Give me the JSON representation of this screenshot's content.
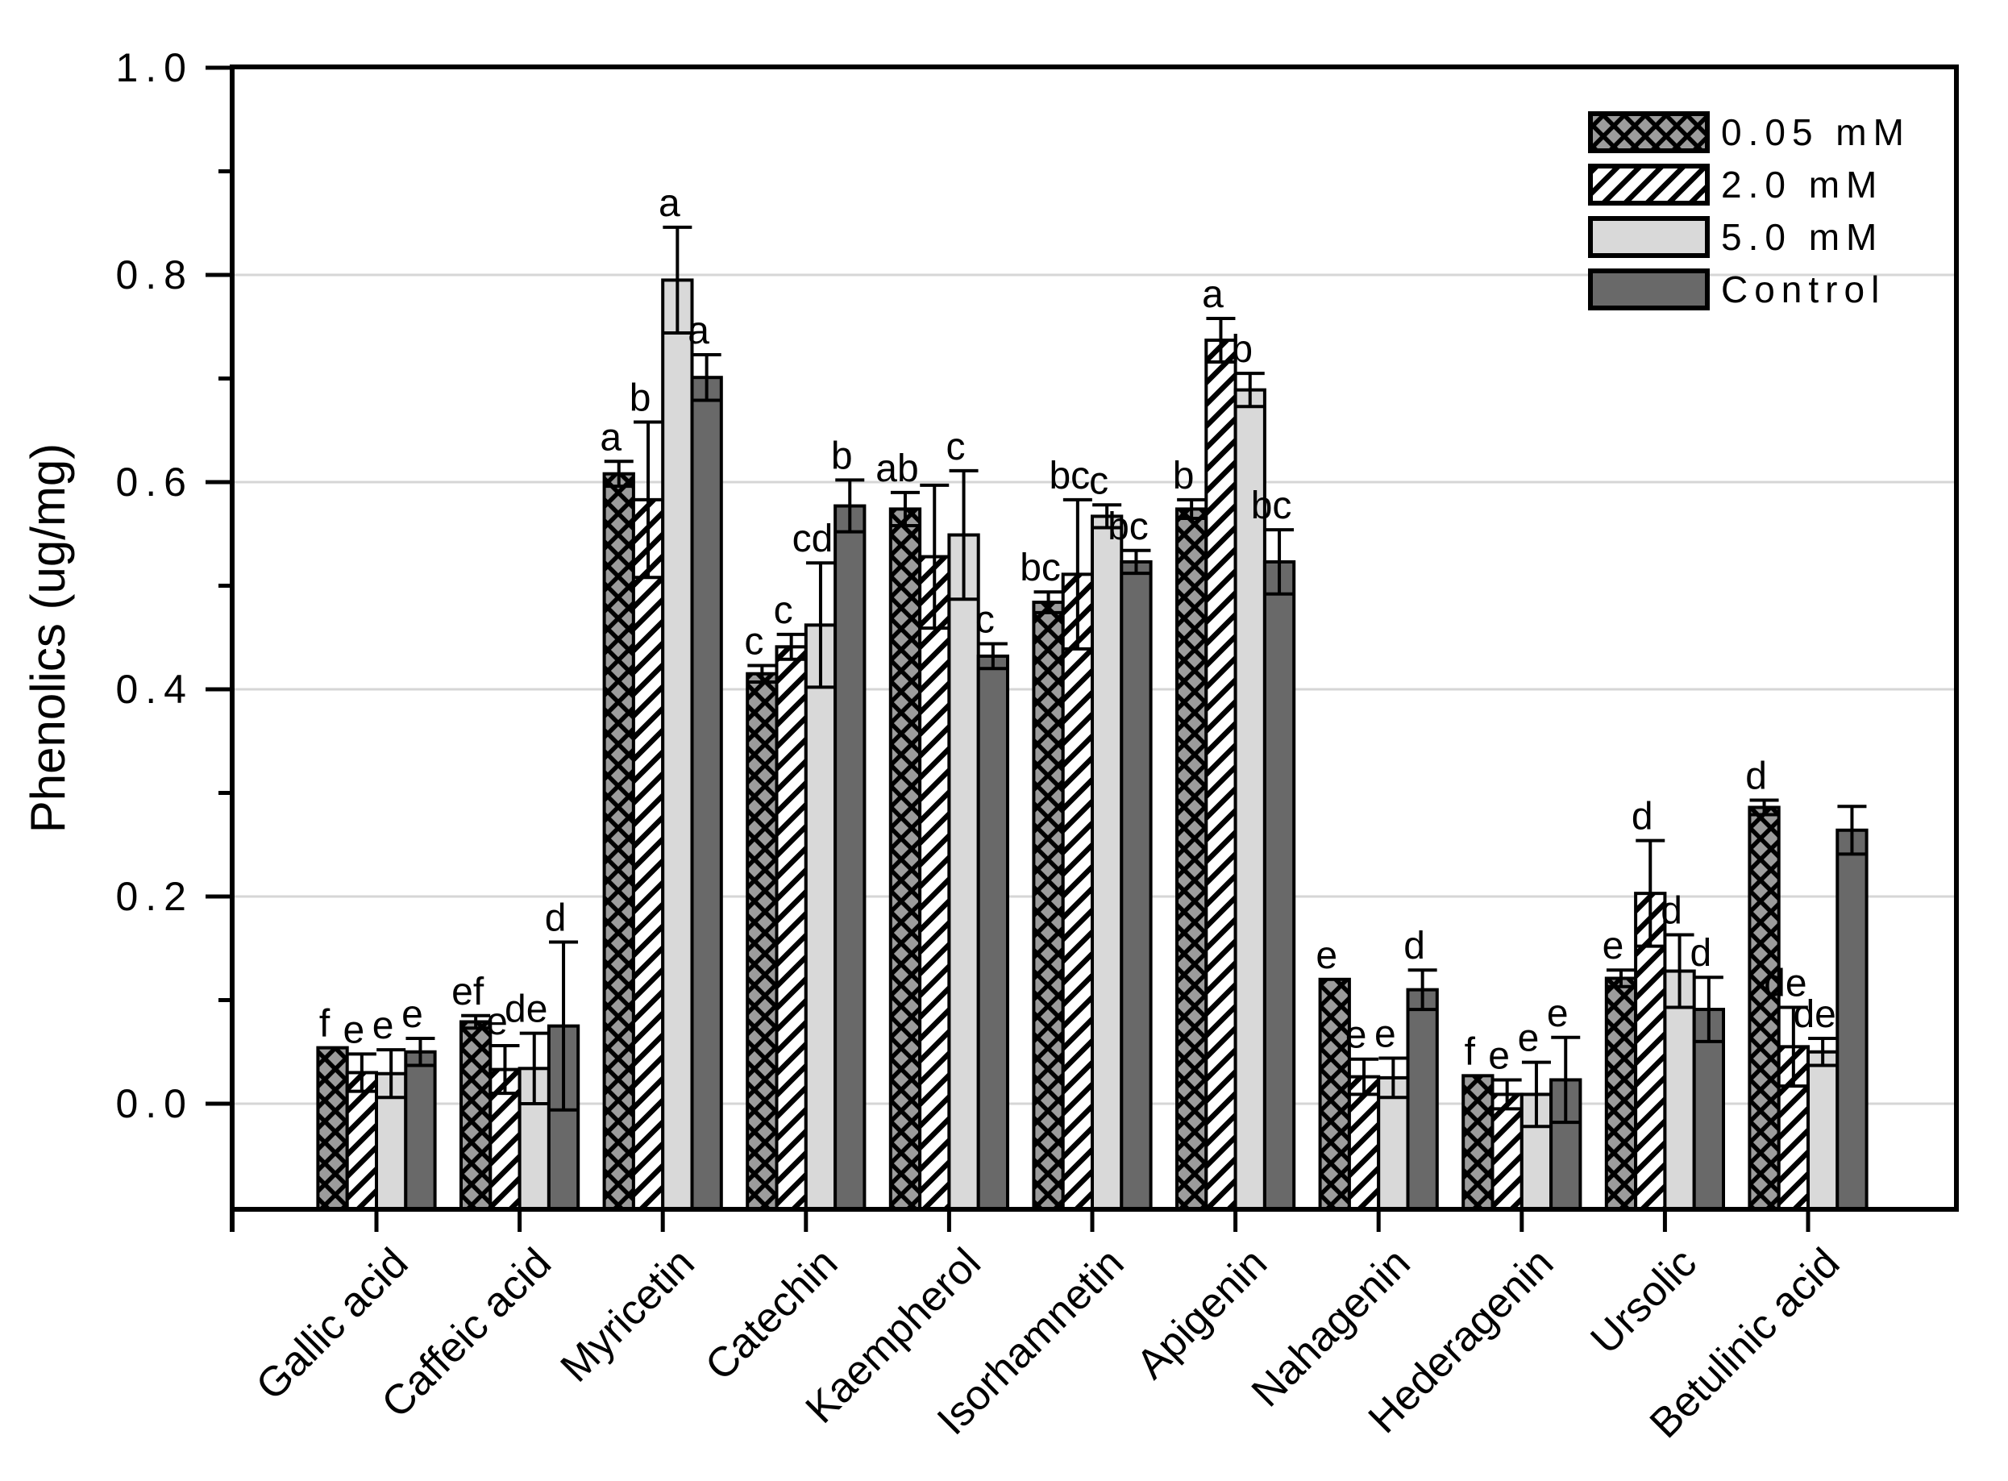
{
  "chart_data": {
    "type": "bar",
    "title": "",
    "ylabel": "Phenolics (ug/mg)",
    "xlabel": "",
    "ylim": [
      -0.1,
      1.0
    ],
    "yticks": [
      0.0,
      0.2,
      0.4,
      0.6,
      0.8,
      1.0
    ],
    "y_tick_labels": [
      "0.0",
      "0.2",
      "0.4",
      "0.6",
      "0.8",
      "1.0"
    ],
    "minor_tick_step": 0.1,
    "grid": true,
    "gridline_color": "#d6d6d6",
    "legend_position": "top-right",
    "categories": [
      "Gallic acid",
      "Caffeic acid",
      "Myricetin",
      "Catechin",
      "Kaempherol",
      "Isorhamnetin",
      "Apigenin",
      "Nahagenin",
      "Hederagenin",
      "Ursolic",
      "Betulinic acid"
    ],
    "series": [
      {
        "name": "0.05 mM",
        "pattern": "crosshatch",
        "fill": "#9c9c9c",
        "values": [
          0.054,
          0.079,
          0.608,
          0.415,
          0.574,
          0.484,
          0.574,
          0.12,
          0.027,
          0.121,
          0.286
        ],
        "errors": [
          0.0,
          0.006,
          0.012,
          0.008,
          0.016,
          0.01,
          0.009,
          0.0,
          0.0,
          0.008,
          0.007
        ],
        "letters": [
          "f",
          "ef",
          "a",
          "c",
          "ab",
          "bc",
          "b",
          "e",
          "f",
          "e",
          "d"
        ]
      },
      {
        "name": "2.0 mM",
        "pattern": "hatch",
        "fill": "#ffffff",
        "values": [
          0.03,
          0.033,
          0.583,
          0.441,
          0.528,
          0.511,
          0.737,
          0.026,
          0.009,
          0.203,
          0.055
        ],
        "errors": [
          0.018,
          0.023,
          0.075,
          0.012,
          0.069,
          0.072,
          0.021,
          0.017,
          0.014,
          0.051,
          0.038
        ],
        "letters": [
          "e",
          "e",
          "b",
          "c",
          "",
          "bc",
          "a",
          "e",
          "e",
          "d",
          "de"
        ]
      },
      {
        "name": "5.0 mM",
        "pattern": "solid",
        "fill": "#d9d9d9",
        "values": [
          0.029,
          0.034,
          0.795,
          0.462,
          0.549,
          0.567,
          0.689,
          0.025,
          0.009,
          0.128,
          0.05
        ],
        "errors": [
          0.023,
          0.034,
          0.051,
          0.06,
          0.062,
          0.011,
          0.016,
          0.019,
          0.031,
          0.035,
          0.013
        ],
        "letters": [
          "e",
          "de",
          "a",
          "cd",
          "c",
          "c",
          "b",
          "e",
          "e",
          "d",
          "de"
        ]
      },
      {
        "name": "Control",
        "pattern": "solid",
        "fill": "#696969",
        "values": [
          0.05,
          0.075,
          0.701,
          0.577,
          0.432,
          0.523,
          0.523,
          0.11,
          0.023,
          0.091,
          0.264
        ],
        "errors": [
          0.013,
          0.081,
          0.022,
          0.025,
          0.012,
          0.011,
          0.031,
          0.019,
          0.041,
          0.031,
          0.023
        ],
        "letters": [
          "e",
          "d",
          "a",
          "b",
          "c",
          "bc",
          "bc",
          "d",
          "e",
          "d",
          ""
        ]
      }
    ]
  }
}
